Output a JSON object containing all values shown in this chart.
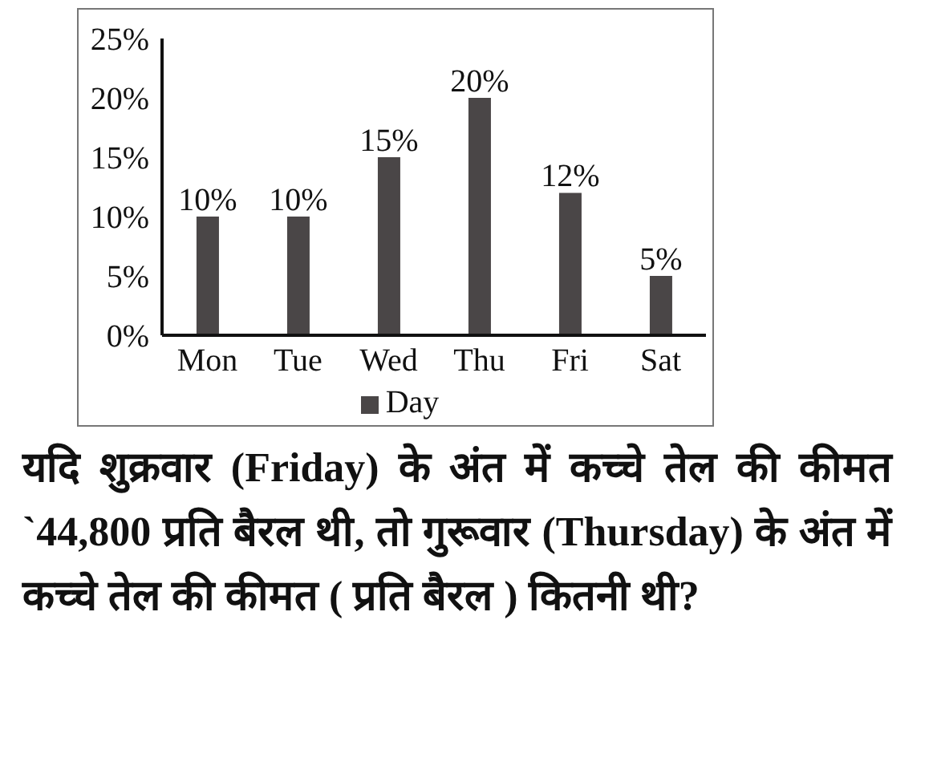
{
  "chart_data": {
    "type": "bar",
    "categories": [
      "Mon",
      "Tue",
      "Wed",
      "Thu",
      "Fri",
      "Sat"
    ],
    "series": [
      {
        "name": "Day",
        "color": "#4a4647",
        "values": [
          10,
          10,
          15,
          20,
          12,
          5
        ],
        "value_labels": [
          "10%",
          "10%",
          "15%",
          "20%",
          "12%",
          "5%"
        ]
      }
    ],
    "ylim": [
      0,
      25
    ],
    "yticks": [
      {
        "value": 0,
        "label": "0%"
      },
      {
        "value": 5,
        "label": "5%"
      },
      {
        "value": 10,
        "label": "10%"
      },
      {
        "value": 15,
        "label": "15%"
      },
      {
        "value": 20,
        "label": "20%"
      },
      {
        "value": 25,
        "label": "25%"
      }
    ],
    "legend": "bottom",
    "annotations": [
      "यदि शुक्रवार (Friday) के अंत में कच्चे तेल की कीमत `44,800 प्रति बैरल थी, तो गुरूवार (Thursday) के अंत में कच्चे तेल की कीमत ( प्रति बैरल ) कितनी थी?"
    ]
  }
}
